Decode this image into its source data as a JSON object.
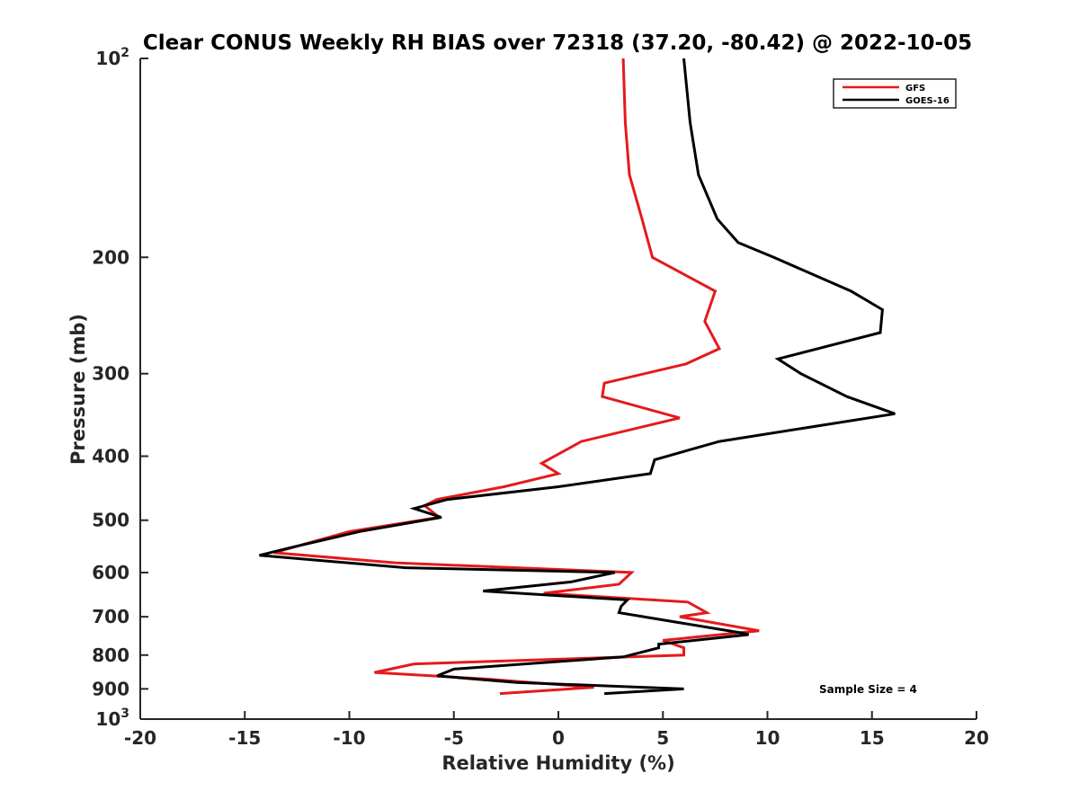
{
  "colors": {
    "gfs": "#e41a1c",
    "goes16": "#000000",
    "axis": "#262626"
  },
  "chart_data": {
    "type": "line",
    "orientation": "profile",
    "title": "Clear CONUS Weekly RH BIAS over 72318 (37.20, -80.42) @ 2022-10-05",
    "xlabel": "Relative Humidity (%)",
    "ylabel": "Pressure (mb)",
    "xlim": [
      -20,
      20
    ],
    "ylim": [
      100,
      1000
    ],
    "yscale": "log",
    "yreverse": true,
    "grid": false,
    "legend_position": "top-right",
    "x_ticks": [
      {
        "value": -20,
        "label": "-20"
      },
      {
        "value": -15,
        "label": "-15"
      },
      {
        "value": -10,
        "label": "-10"
      },
      {
        "value": -5,
        "label": "-5"
      },
      {
        "value": 0,
        "label": "0"
      },
      {
        "value": 5,
        "label": "5"
      },
      {
        "value": 10,
        "label": "10"
      },
      {
        "value": 15,
        "label": "15"
      },
      {
        "value": 20,
        "label": "20"
      }
    ],
    "y_ticks": [
      {
        "value": 100,
        "base": "10",
        "exp": "2"
      },
      {
        "value": 200,
        "base": "200",
        "exp": ""
      },
      {
        "value": 300,
        "base": "300",
        "exp": ""
      },
      {
        "value": 400,
        "base": "400",
        "exp": ""
      },
      {
        "value": 500,
        "base": "500",
        "exp": ""
      },
      {
        "value": 600,
        "base": "600",
        "exp": ""
      },
      {
        "value": 700,
        "base": "700",
        "exp": ""
      },
      {
        "value": 800,
        "base": "800",
        "exp": ""
      },
      {
        "value": 900,
        "base": "900",
        "exp": ""
      },
      {
        "value": 1000,
        "base": "10",
        "exp": "3"
      }
    ],
    "series": [
      {
        "name": "GFS",
        "color": "#e41a1c",
        "points": [
          [
            3.1,
            100
          ],
          [
            3.2,
            125
          ],
          [
            3.4,
            150
          ],
          [
            4.0,
            175
          ],
          [
            4.5,
            200
          ],
          [
            7.5,
            225
          ],
          [
            7.0,
            250
          ],
          [
            7.7,
            275
          ],
          [
            6.1,
            290
          ],
          [
            2.2,
            310
          ],
          [
            2.1,
            325
          ],
          [
            5.8,
            350
          ],
          [
            1.1,
            380
          ],
          [
            -0.8,
            410
          ],
          [
            0.0,
            425
          ],
          [
            -2.6,
            445
          ],
          [
            -5.8,
            465
          ],
          [
            -6.4,
            475
          ],
          [
            -5.7,
            495
          ],
          [
            -10.0,
            520
          ],
          [
            -12.3,
            545
          ],
          [
            -13.6,
            560
          ],
          [
            -7.8,
            580
          ],
          [
            3.5,
            600
          ],
          [
            2.9,
            625
          ],
          [
            -0.7,
            645
          ],
          [
            6.2,
            665
          ],
          [
            7.1,
            690
          ],
          [
            5.8,
            700
          ],
          [
            9.6,
            735
          ],
          [
            5.0,
            760
          ],
          [
            6.0,
            780
          ],
          [
            6.0,
            800
          ],
          [
            -6.9,
            825
          ],
          [
            -8.8,
            850
          ],
          [
            -3.4,
            870
          ],
          [
            1.7,
            895
          ],
          [
            -2.8,
            915
          ]
        ]
      },
      {
        "name": "GOES-16",
        "color": "#000000",
        "points": [
          [
            6.0,
            100
          ],
          [
            6.3,
            125
          ],
          [
            6.7,
            150
          ],
          [
            7.6,
            175
          ],
          [
            8.6,
            190
          ],
          [
            10.3,
            200
          ],
          [
            14.0,
            225
          ],
          [
            15.5,
            240
          ],
          [
            15.4,
            260
          ],
          [
            10.5,
            285
          ],
          [
            11.6,
            300
          ],
          [
            13.8,
            325
          ],
          [
            16.1,
            345
          ],
          [
            7.7,
            380
          ],
          [
            4.6,
            405
          ],
          [
            4.4,
            425
          ],
          [
            0.0,
            445
          ],
          [
            -5.3,
            465
          ],
          [
            -6.9,
            480
          ],
          [
            -5.6,
            495
          ],
          [
            -9.5,
            520
          ],
          [
            -12.8,
            550
          ],
          [
            -14.3,
            565
          ],
          [
            -7.3,
            590
          ],
          [
            2.7,
            600
          ],
          [
            0.6,
            620
          ],
          [
            -3.6,
            640
          ],
          [
            3.3,
            660
          ],
          [
            3.0,
            675
          ],
          [
            2.9,
            690
          ],
          [
            8.7,
            740
          ],
          [
            9.1,
            745
          ],
          [
            4.8,
            770
          ],
          [
            4.8,
            780
          ],
          [
            3.1,
            805
          ],
          [
            -5.0,
            840
          ],
          [
            -5.8,
            860
          ],
          [
            -2.0,
            880
          ],
          [
            6.0,
            900
          ],
          [
            2.2,
            915
          ]
        ]
      }
    ],
    "annotations": [
      "Sample Size = 4"
    ]
  }
}
